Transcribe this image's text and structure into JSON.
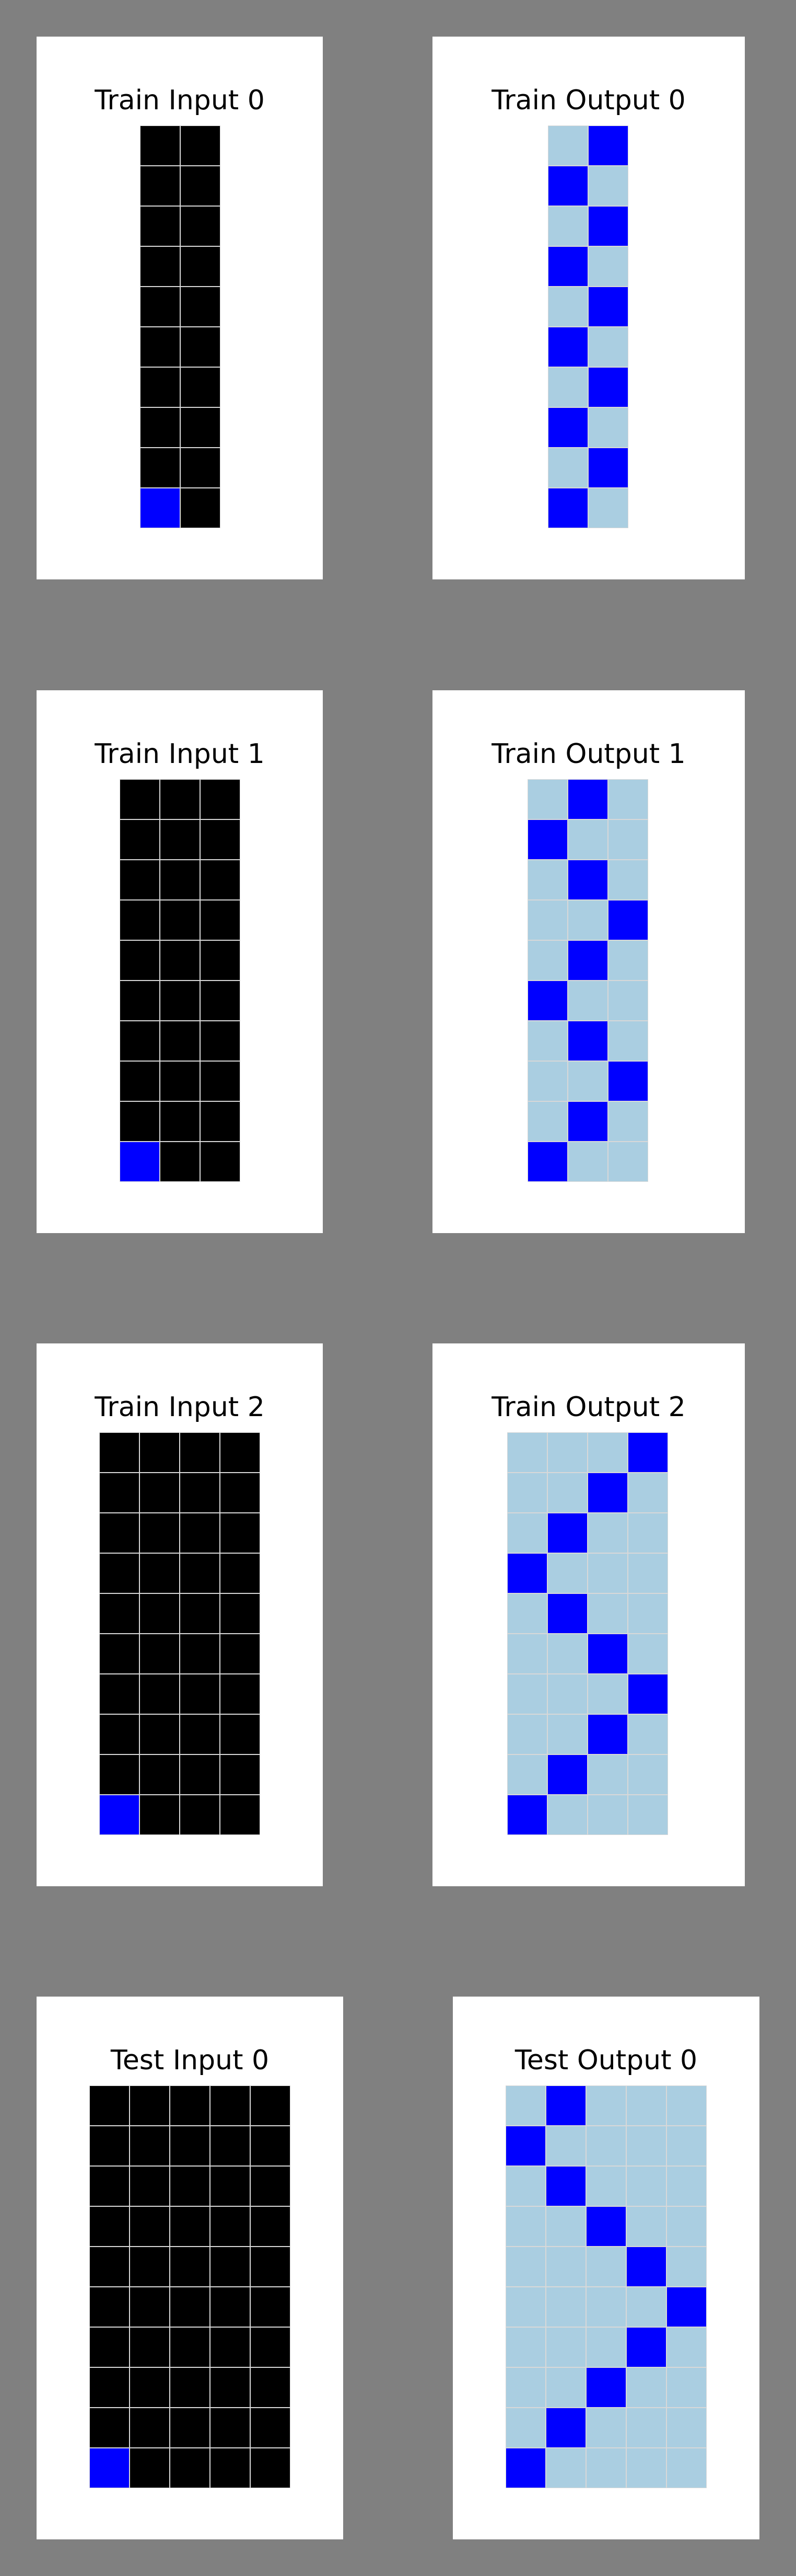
{
  "colors": {
    "0": "#000000",
    "1": "#0000ff",
    "8": "#aacee1",
    "background": "#808080",
    "panel": "#ffffff",
    "gridline": "#d8d8d8"
  },
  "panels": [
    {
      "title": "Train Input 0",
      "grid": [
        [
          0,
          0
        ],
        [
          0,
          0
        ],
        [
          0,
          0
        ],
        [
          0,
          0
        ],
        [
          0,
          0
        ],
        [
          0,
          0
        ],
        [
          0,
          0
        ],
        [
          0,
          0
        ],
        [
          0,
          0
        ],
        [
          1,
          0
        ]
      ]
    },
    {
      "title": "Train Output 0",
      "grid": [
        [
          8,
          1
        ],
        [
          1,
          8
        ],
        [
          8,
          1
        ],
        [
          1,
          8
        ],
        [
          8,
          1
        ],
        [
          1,
          8
        ],
        [
          8,
          1
        ],
        [
          1,
          8
        ],
        [
          8,
          1
        ],
        [
          1,
          8
        ]
      ]
    },
    {
      "title": "Train Input 1",
      "grid": [
        [
          0,
          0,
          0
        ],
        [
          0,
          0,
          0
        ],
        [
          0,
          0,
          0
        ],
        [
          0,
          0,
          0
        ],
        [
          0,
          0,
          0
        ],
        [
          0,
          0,
          0
        ],
        [
          0,
          0,
          0
        ],
        [
          0,
          0,
          0
        ],
        [
          0,
          0,
          0
        ],
        [
          1,
          0,
          0
        ]
      ]
    },
    {
      "title": "Train Output 1",
      "grid": [
        [
          8,
          1,
          8
        ],
        [
          1,
          8,
          8
        ],
        [
          8,
          1,
          8
        ],
        [
          8,
          8,
          1
        ],
        [
          8,
          1,
          8
        ],
        [
          1,
          8,
          8
        ],
        [
          8,
          1,
          8
        ],
        [
          8,
          8,
          1
        ],
        [
          8,
          1,
          8
        ],
        [
          1,
          8,
          8
        ]
      ]
    },
    {
      "title": "Train Input 2",
      "grid": [
        [
          0,
          0,
          0,
          0
        ],
        [
          0,
          0,
          0,
          0
        ],
        [
          0,
          0,
          0,
          0
        ],
        [
          0,
          0,
          0,
          0
        ],
        [
          0,
          0,
          0,
          0
        ],
        [
          0,
          0,
          0,
          0
        ],
        [
          0,
          0,
          0,
          0
        ],
        [
          0,
          0,
          0,
          0
        ],
        [
          0,
          0,
          0,
          0
        ],
        [
          1,
          0,
          0,
          0
        ]
      ]
    },
    {
      "title": "Train Output 2",
      "grid": [
        [
          8,
          8,
          8,
          1
        ],
        [
          8,
          8,
          1,
          8
        ],
        [
          8,
          1,
          8,
          8
        ],
        [
          1,
          8,
          8,
          8
        ],
        [
          8,
          1,
          8,
          8
        ],
        [
          8,
          8,
          1,
          8
        ],
        [
          8,
          8,
          8,
          1
        ],
        [
          8,
          8,
          1,
          8
        ],
        [
          8,
          1,
          8,
          8
        ],
        [
          1,
          8,
          8,
          8
        ]
      ]
    },
    {
      "title": "Test Input 0",
      "grid": [
        [
          0,
          0,
          0,
          0,
          0
        ],
        [
          0,
          0,
          0,
          0,
          0
        ],
        [
          0,
          0,
          0,
          0,
          0
        ],
        [
          0,
          0,
          0,
          0,
          0
        ],
        [
          0,
          0,
          0,
          0,
          0
        ],
        [
          0,
          0,
          0,
          0,
          0
        ],
        [
          0,
          0,
          0,
          0,
          0
        ],
        [
          0,
          0,
          0,
          0,
          0
        ],
        [
          0,
          0,
          0,
          0,
          0
        ],
        [
          1,
          0,
          0,
          0,
          0
        ]
      ]
    },
    {
      "title": "Test Output 0",
      "grid": [
        [
          8,
          1,
          8,
          8,
          8
        ],
        [
          1,
          8,
          8,
          8,
          8
        ],
        [
          8,
          1,
          8,
          8,
          8
        ],
        [
          8,
          8,
          1,
          8,
          8
        ],
        [
          8,
          8,
          8,
          1,
          8
        ],
        [
          8,
          8,
          8,
          8,
          1
        ],
        [
          8,
          8,
          8,
          1,
          8
        ],
        [
          8,
          8,
          1,
          8,
          8
        ],
        [
          8,
          1,
          8,
          8,
          8
        ],
        [
          1,
          8,
          8,
          8,
          8
        ]
      ]
    }
  ]
}
